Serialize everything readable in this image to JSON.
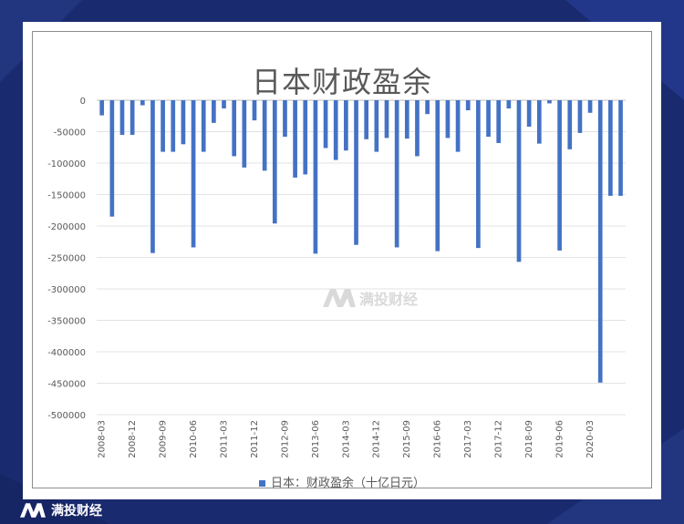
{
  "watermark_text": "满投财经",
  "brand_text": "满投财经",
  "chart_data": {
    "type": "bar",
    "title": "日本财政盈余",
    "xlabel": "",
    "ylabel": "",
    "ylim": [
      -500000,
      0
    ],
    "yticks": [
      0,
      -50000,
      -100000,
      -150000,
      -200000,
      -250000,
      -300000,
      -350000,
      -400000,
      -450000,
      -500000
    ],
    "ytick_labels": [
      "0",
      "-50000",
      "-100000",
      "-150000",
      "-200000",
      "-250000",
      "-300000",
      "-350000",
      "-400000",
      "-450000",
      "-500000"
    ],
    "xtick_labels": [
      "2008-03",
      "2008-12",
      "2009-09",
      "2010-06",
      "2011-03",
      "2011-12",
      "2012-09",
      "2013-06",
      "2014-03",
      "2014-12",
      "2015-09",
      "2016-06",
      "2017-03",
      "2017-12",
      "2018-09",
      "2019-06",
      "2020-03"
    ],
    "legend": "日本：财政盈余（十亿日元）",
    "color": "#4472c4",
    "categories": [
      "2008-03",
      "2008-06",
      "2008-09",
      "2008-12",
      "2009-03",
      "2009-06",
      "2009-09",
      "2009-12",
      "2010-03",
      "2010-06",
      "2010-09",
      "2010-12",
      "2011-03",
      "2011-06",
      "2011-09",
      "2011-12",
      "2012-03",
      "2012-06",
      "2012-09",
      "2012-12",
      "2013-03",
      "2013-06",
      "2013-09",
      "2013-12",
      "2014-03",
      "2014-06",
      "2014-09",
      "2014-12",
      "2015-03",
      "2015-06",
      "2015-09",
      "2015-12",
      "2016-03",
      "2016-06",
      "2016-09",
      "2016-12",
      "2017-03",
      "2017-06",
      "2017-09",
      "2017-12",
      "2018-03",
      "2018-06",
      "2018-09",
      "2018-12",
      "2019-03",
      "2019-06",
      "2019-09",
      "2019-12",
      "2020-03",
      "2020-06",
      "2020-09",
      "2020-12"
    ],
    "values": [
      -24000,
      -185000,
      -55000,
      -55000,
      -8000,
      -243000,
      -82000,
      -82000,
      -70000,
      -234000,
      -82000,
      -36000,
      -13000,
      -89000,
      -107000,
      -32000,
      -112000,
      -196000,
      -58000,
      -123000,
      -118000,
      -244000,
      -76000,
      -95000,
      -80000,
      -230000,
      -62000,
      -82000,
      -60000,
      -234000,
      -61000,
      -89000,
      -22000,
      -240000,
      -60000,
      -82000,
      -16000,
      -235000,
      -58000,
      -68000,
      -13000,
      -257000,
      -42000,
      -69000,
      -5000,
      -239000,
      -78000,
      -52000,
      -20000,
      -449000,
      -152000,
      -152000
    ]
  }
}
